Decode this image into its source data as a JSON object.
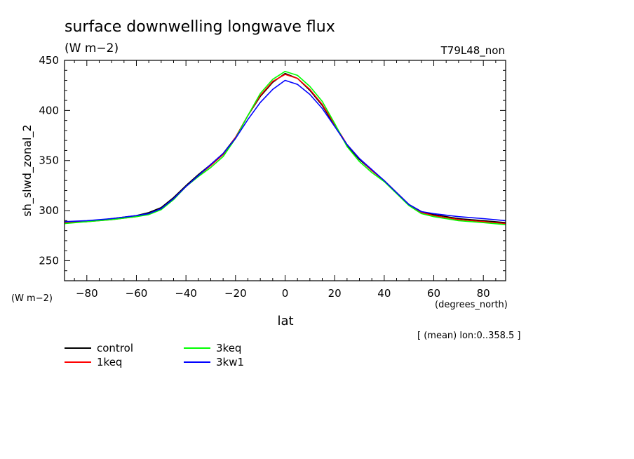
{
  "chart_data": {
    "type": "line",
    "title": "surface downwelling longwave flux",
    "subtitle": "(W m−2)",
    "run_label": "T79L48_non",
    "ylabel": "sh_slwd_zonal_2",
    "y_units": "(W m−2)",
    "xlabel": "lat",
    "x_units": "(degrees_north)",
    "footnote": "[ (mean) lon:0..358.5 ]",
    "xlim": [
      -89,
      89
    ],
    "ylim": [
      230,
      450
    ],
    "x_ticks": [
      -80,
      -60,
      -40,
      -20,
      0,
      20,
      40,
      60,
      80
    ],
    "x_tick_labels": [
      "−80",
      "−60",
      "−40",
      "−20",
      "0",
      "20",
      "40",
      "60",
      "80"
    ],
    "y_ticks": [
      250,
      300,
      350,
      400,
      450
    ],
    "y_tick_labels": [
      "250",
      "300",
      "350",
      "400",
      "450"
    ],
    "x": [
      -89,
      -80,
      -70,
      -60,
      -55,
      -50,
      -45,
      -40,
      -35,
      -30,
      -25,
      -20,
      -15,
      -10,
      -5,
      0,
      5,
      10,
      15,
      20,
      25,
      30,
      35,
      40,
      45,
      50,
      55,
      60,
      70,
      80,
      89
    ],
    "series": [
      {
        "name": "control",
        "color": "#000000",
        "values": [
          288,
          289,
          292,
          295,
          298,
          303,
          313,
          325,
          336,
          346,
          357,
          373,
          395,
          414,
          428,
          437,
          432,
          420,
          405,
          385,
          365,
          351,
          340,
          330,
          318,
          306,
          299,
          296,
          292,
          290,
          288
        ]
      },
      {
        "name": "1keq",
        "color": "#ff0000",
        "values": [
          288,
          289,
          291,
          294,
          297,
          302,
          312,
          324,
          335,
          345,
          356,
          373,
          395,
          415,
          429,
          436,
          432,
          421,
          406,
          386,
          366,
          352,
          340,
          330,
          318,
          306,
          298,
          295,
          291,
          289,
          287
        ]
      },
      {
        "name": "3keq",
        "color": "#00ff00",
        "values": [
          287,
          289,
          291,
          294,
          296,
          301,
          311,
          324,
          334,
          343,
          354,
          372,
          395,
          417,
          431,
          439,
          435,
          424,
          409,
          387,
          364,
          349,
          338,
          329,
          317,
          305,
          297,
          294,
          290,
          288,
          286
        ]
      },
      {
        "name": "3kw1",
        "color": "#0000ff",
        "values": [
          289,
          290,
          292,
          295,
          297,
          302,
          312,
          324,
          335,
          346,
          357,
          372,
          391,
          408,
          421,
          430,
          426,
          416,
          402,
          384,
          366,
          352,
          341,
          330,
          318,
          306,
          299,
          297,
          294,
          292,
          290
        ]
      }
    ],
    "legend_position": "bottom-left",
    "grid": false
  }
}
